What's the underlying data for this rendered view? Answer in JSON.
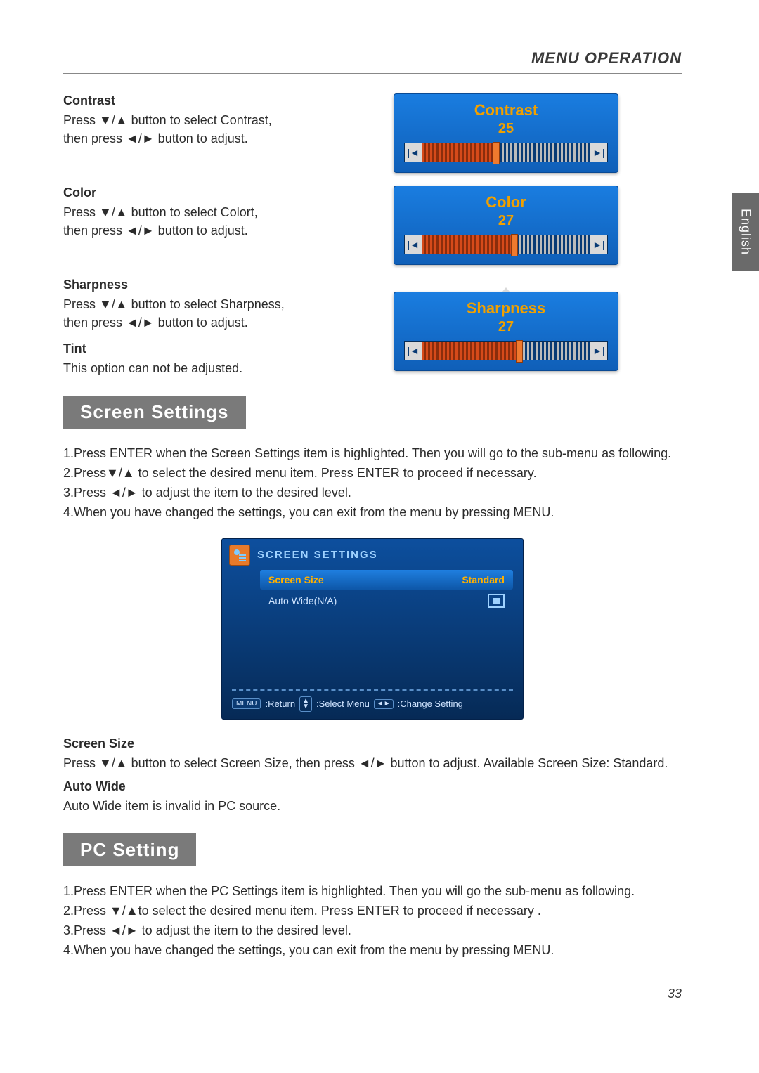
{
  "header": {
    "title": "MENU OPERATION"
  },
  "side_tab": "English",
  "page_number": "33",
  "items": {
    "contrast": {
      "heading": "Contrast",
      "line1": "Press ▼/▲ button to select Contrast,",
      "line2": "then press ◄/► button to adjust.",
      "widget": {
        "title": "Contrast",
        "value": "25",
        "percent": 44
      }
    },
    "color": {
      "heading": "Color",
      "line1": "Press ▼/▲ button to select Colort,",
      "line2": "then press ◄/► button to adjust.",
      "widget": {
        "title": "Color",
        "value": "27",
        "percent": 55
      }
    },
    "sharpness": {
      "heading": "Sharpness",
      "line1": "Press ▼/▲ button to select Sharpness,",
      "line2": "then press ◄/► button to adjust.",
      "widget": {
        "title": "Sharpness",
        "value": "27",
        "percent": 58,
        "show_up_marker": true
      }
    },
    "tint": {
      "heading": "Tint",
      "line1": "This option can not be adjusted."
    }
  },
  "section_screen": {
    "bar": "Screen  Settings",
    "step1": "1.Press ENTER when the Screen Settings item is highlighted. Then you will go to the sub-menu as following.",
    "step2": "2.Press▼/▲ to select the desired menu item. Press ENTER to proceed if necessary.",
    "step3": "3.Press ◄/► to adjust the item to the desired level.",
    "step4": "4.When you have changed the settings, you can exit from the menu by pressing MENU.",
    "osd": {
      "title": "SCREEN SETTINGS",
      "row1_label": "Screen Size",
      "row1_value": "Standard",
      "row2_label": "Auto Wide(N/A)",
      "foot_menu": "MENU",
      "foot_return": ":Return",
      "foot_select": ":Select Menu",
      "foot_change": ":Change Setting"
    },
    "after1_h": "Screen  Size",
    "after1_p": "Press ▼/▲ button to select Screen Size, then press ◄/► button to adjust. Available Screen Size: Standard.",
    "after2_h": "Auto  Wide",
    "after2_p": "Auto Wide item is invalid in PC source."
  },
  "section_pc": {
    "bar": "PC  Setting",
    "step1": "1.Press ENTER when the PC Settings item is highlighted. Then you will go the sub-menu as following.",
    "step2": "2.Press ▼/▲to select the desired menu item. Press ENTER to proceed if necessary .",
    "step3": "3.Press ◄/► to adjust the item to the desired level.",
    "step4": "4.When you have changed the settings, you can exit from the menu by pressing MENU."
  },
  "colors": {
    "slider_bg_top": "#1a7de0",
    "slider_bg_bottom": "#0f5fb8",
    "slider_accent": "#f0a000",
    "section_bar_bg": "#7a7a7a",
    "osd_bg_top": "#0d4f9e",
    "osd_bg_bottom": "#062a56"
  }
}
